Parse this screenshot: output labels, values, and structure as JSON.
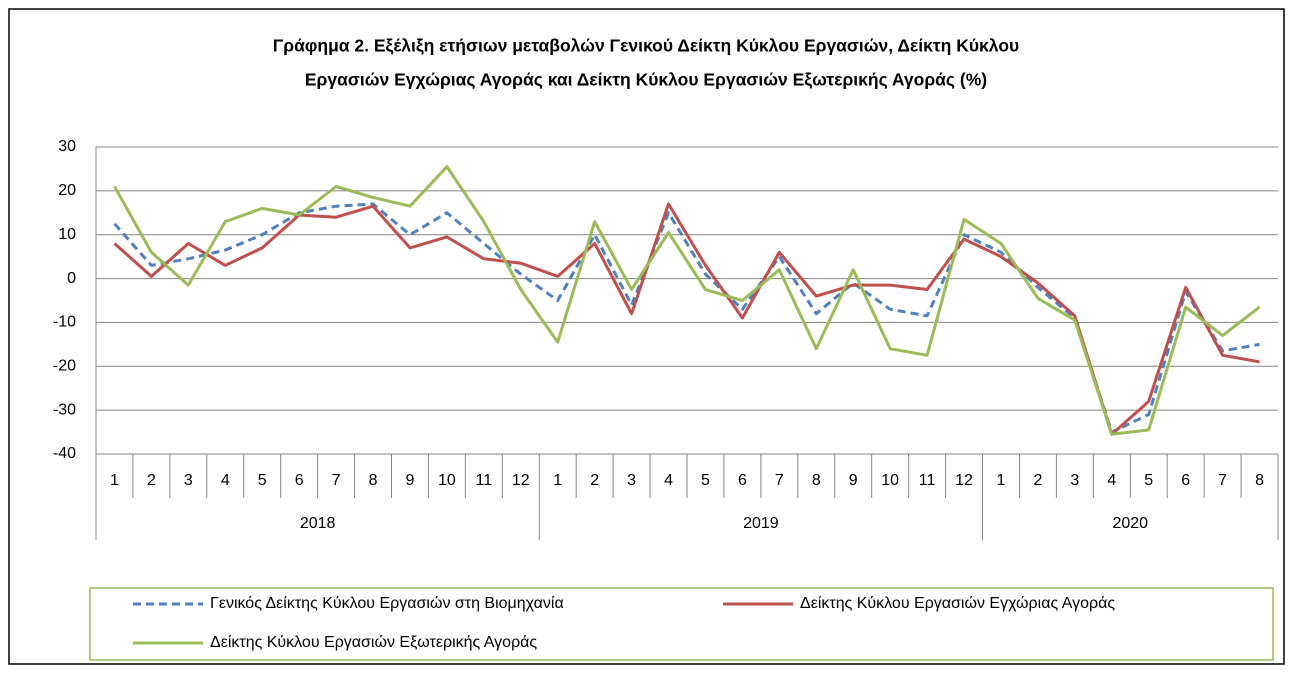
{
  "chart_data": {
    "type": "line",
    "title": [
      "Γράφημα 2. Εξέλιξη ετήσιων μεταβολών Γενικού Δείκτη Κύκλου Εργασιών,  Δείκτη Κύκλου",
      "Εργασιών Εγχώριας Αγοράς και Δείκτη Κύκλου Εργασιών Εξωτερικής Αγοράς  (%)"
    ],
    "groups": [
      {
        "name": "2018",
        "categories": [
          "1",
          "2",
          "3",
          "4",
          "5",
          "6",
          "7",
          "8",
          "9",
          "10",
          "11",
          "12"
        ]
      },
      {
        "name": "2019",
        "categories": [
          "1",
          "2",
          "3",
          "4",
          "5",
          "6",
          "7",
          "8",
          "9",
          "10",
          "11",
          "12"
        ]
      },
      {
        "name": "2020",
        "categories": [
          "1",
          "2",
          "3",
          "4",
          "5",
          "6",
          "7",
          "8"
        ]
      }
    ],
    "ylim": [
      -40,
      30
    ],
    "yticks": [
      -40,
      -30,
      -20,
      -10,
      0,
      10,
      20,
      30
    ],
    "grid": true,
    "series": [
      {
        "name": "Γενικός Δείκτης Κύκλου Εργασιών στη Βιομηχανία",
        "color": "#4f81bd",
        "dash": true,
        "values": [
          12.5,
          3,
          4.5,
          6.5,
          10,
          15,
          16.5,
          17,
          10,
          15,
          8,
          1,
          -5,
          10,
          -6,
          15,
          1,
          -7,
          5,
          -8,
          -1,
          -7,
          -8.5,
          10,
          6,
          -2,
          -9,
          -35,
          -31,
          -3,
          -16.5,
          -15
        ]
      },
      {
        "name": "Δείκτης Κύκλου Εργασιών Εγχώριας Αγοράς",
        "color": "#c0504d",
        "dash": false,
        "values": [
          8,
          0.5,
          8,
          3,
          7,
          14.5,
          14,
          16.5,
          7,
          9.5,
          4.5,
          3.5,
          0.5,
          8,
          -8,
          17,
          3,
          -9,
          6,
          -4,
          -1.5,
          -1.5,
          -2.5,
          9,
          5,
          -1,
          -8.5,
          -35.5,
          -28,
          -2,
          -17.5,
          -19
        ]
      },
      {
        "name": "Δείκτης Κύκλου Εργασιών Εξωτερικής Αγοράς",
        "color": "#9bbb59",
        "dash": false,
        "values": [
          21,
          6,
          -1.5,
          13,
          16,
          14.5,
          21,
          18.5,
          16.5,
          25.5,
          13,
          -2.5,
          -14.5,
          13,
          -2.5,
          10.5,
          -2.5,
          -5,
          2,
          -16,
          2,
          -16,
          -17.5,
          13.5,
          8,
          -4.5,
          -9.5,
          -35.5,
          -34.5,
          -6.5,
          -13,
          -6.5
        ]
      }
    ]
  }
}
